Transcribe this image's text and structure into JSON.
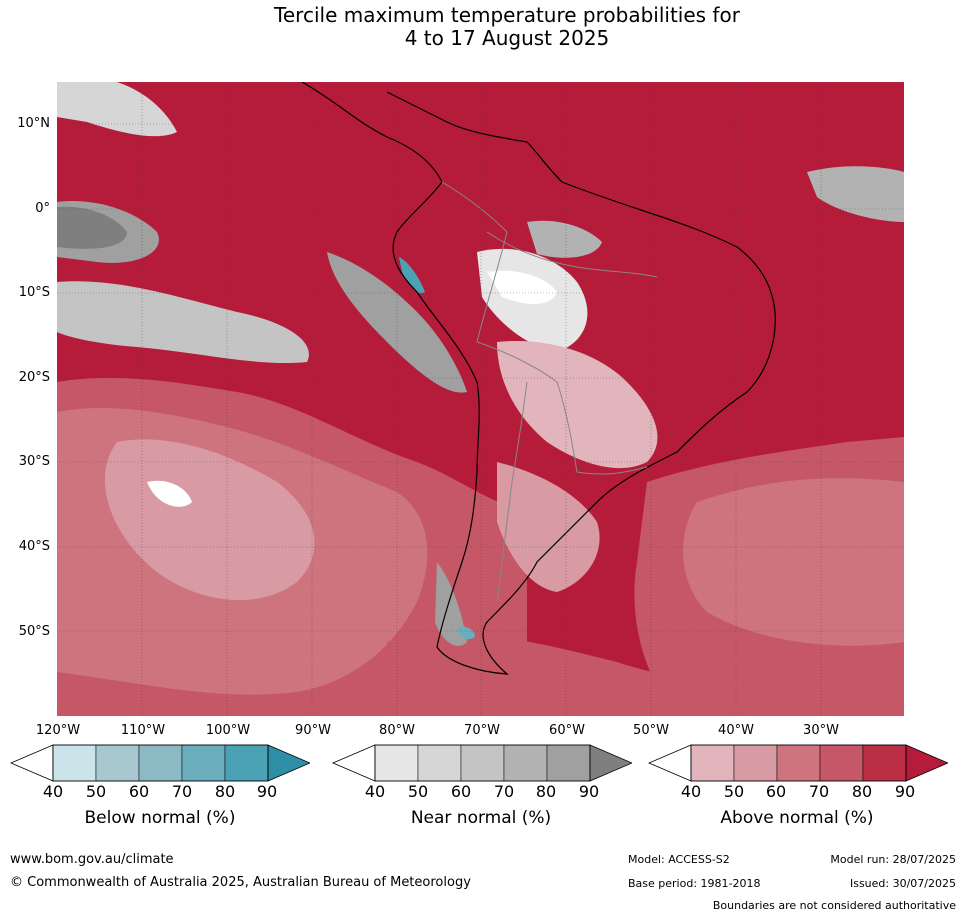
{
  "title": {
    "line1": "Tercile maximum temperature probabilities for",
    "line2": "4 to 17 August 2025"
  },
  "map": {
    "latitude_labels": [
      "10°N",
      "0°",
      "10°S",
      "20°S",
      "30°S",
      "40°S",
      "50°S"
    ],
    "longitude_labels": [
      "120°W",
      "110°W",
      "100°W",
      "90°W",
      "80°W",
      "70°W",
      "60°W",
      "50°W",
      "40°W",
      "30°W"
    ],
    "extent": {
      "lon_min": -120,
      "lon_max": -20,
      "lat_min": -60,
      "lat_max": 15
    },
    "gridlines": true,
    "background_category": "above-normal-90"
  },
  "legend": {
    "below": {
      "title": "Below normal (%)",
      "ticks": [
        "40",
        "50",
        "60",
        "70",
        "80",
        "90"
      ],
      "colors": [
        "#cde3ea",
        "#a8c8cf",
        "#8bbac4",
        "#6aaebd",
        "#4aa2b4",
        "#2e8ea6"
      ]
    },
    "near": {
      "title": "Near normal (%)",
      "ticks": [
        "40",
        "50",
        "60",
        "70",
        "80",
        "90"
      ],
      "colors": [
        "#e6e6e6",
        "#d6d6d6",
        "#c4c4c4",
        "#b2b2b2",
        "#a0a0a0",
        "#7f7f7f"
      ]
    },
    "above": {
      "title": "Above normal (%)",
      "ticks": [
        "40",
        "50",
        "60",
        "70",
        "80",
        "90"
      ],
      "colors": [
        "#e2b4bb",
        "#d89aa3",
        "#cd747f",
        "#c55766",
        "#ba2f46",
        "#b51c3a"
      ]
    }
  },
  "footer": {
    "website": "www.bom.gov.au/climate",
    "copyright": "© Commonwealth of Australia 2025, Australian Bureau of Meteorology",
    "model": "Model: ACCESS-S2",
    "base_period": "Base period: 1981-2018",
    "model_run": "Model run: 28/07/2025",
    "issued": "Issued: 30/07/2025",
    "boundaries_note": "Boundaries are not considered authoritative"
  }
}
